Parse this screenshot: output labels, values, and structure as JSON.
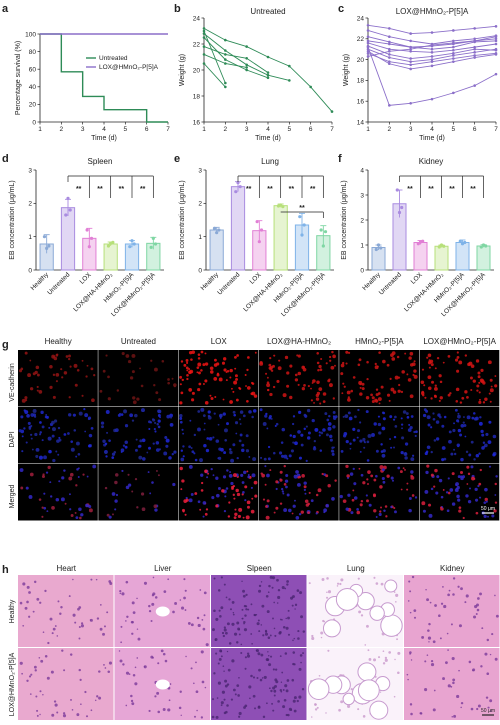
{
  "panels": {
    "a": {
      "letter": "a"
    },
    "b": {
      "letter": "b"
    },
    "c": {
      "letter": "c"
    },
    "d": {
      "letter": "d"
    },
    "e": {
      "letter": "e"
    },
    "f": {
      "letter": "f"
    },
    "g": {
      "letter": "g"
    },
    "h": {
      "letter": "h"
    }
  },
  "chart_data": [
    {
      "id": "a",
      "type": "line",
      "xlabel": "Time (d)",
      "ylabel": "Percentage survival (%)",
      "xlim": [
        1,
        7
      ],
      "ylim": [
        0,
        100
      ],
      "xticks": [
        1,
        2,
        3,
        4,
        5,
        6,
        7
      ],
      "yticks": [
        0,
        20,
        40,
        60,
        80,
        100
      ],
      "legend": "top-right",
      "series": [
        {
          "name": "Untreated",
          "color": "#2e8b57",
          "step": true,
          "x": [
            1,
            2,
            2,
            3,
            3,
            4,
            4,
            6,
            6,
            7
          ],
          "y": [
            100,
            100,
            57,
            57,
            29,
            29,
            14,
            14,
            0,
            0
          ]
        },
        {
          "name": "LOX@HMnO₂-P[5]A",
          "color": "#8b6fc9",
          "step": true,
          "x": [
            1,
            7
          ],
          "y": [
            100,
            100
          ]
        }
      ]
    },
    {
      "id": "b",
      "type": "line",
      "title": "Untreated",
      "xlabel": "Time (d)",
      "ylabel": "Weight (g)",
      "xlim": [
        1,
        7
      ],
      "ylim": [
        16,
        24
      ],
      "xticks": [
        1,
        2,
        3,
        4,
        5,
        6,
        7
      ],
      "yticks": [
        16,
        18,
        20,
        22,
        24
      ],
      "color": "#2e8b57",
      "series": [
        {
          "x": [
            1,
            2,
            3,
            4,
            5,
            6,
            7
          ],
          "y": [
            23.2,
            22.3,
            21.8,
            21.0,
            20.3,
            18.7,
            16.8
          ]
        },
        {
          "x": [
            1,
            2,
            3,
            4,
            5
          ],
          "y": [
            22.8,
            21.5,
            20.4,
            19.6,
            19.2
          ]
        },
        {
          "x": [
            1,
            2,
            3,
            4
          ],
          "y": [
            22.5,
            20.8,
            20.0,
            19.4
          ]
        },
        {
          "x": [
            1,
            2,
            3,
            4
          ],
          "y": [
            21.8,
            21.2,
            20.9,
            19.8
          ]
        },
        {
          "x": [
            1,
            2,
            3
          ],
          "y": [
            21.2,
            20.5,
            20.2
          ]
        },
        {
          "x": [
            1,
            2
          ],
          "y": [
            23.0,
            19.0
          ]
        },
        {
          "x": [
            1,
            2
          ],
          "y": [
            20.5,
            18.7
          ]
        }
      ]
    },
    {
      "id": "c",
      "type": "line",
      "title": "LOX@HMnO₂-P[5]A",
      "xlabel": "Time (d)",
      "ylabel": "Weight (g)",
      "xlim": [
        1,
        7
      ],
      "ylim": [
        14,
        24
      ],
      "xticks": [
        1,
        2,
        3,
        4,
        5,
        6,
        7
      ],
      "yticks": [
        14,
        16,
        18,
        20,
        22,
        24
      ],
      "color": "#8b6fc9",
      "series": [
        {
          "x": [
            1,
            2,
            3,
            4,
            5,
            6,
            7
          ],
          "y": [
            23.3,
            23.0,
            22.5,
            22.6,
            22.8,
            23.0,
            23.2
          ]
        },
        {
          "x": [
            1,
            2,
            3,
            4,
            5,
            6,
            7
          ],
          "y": [
            22.8,
            22.2,
            21.8,
            21.5,
            21.8,
            22.0,
            22.3
          ]
        },
        {
          "x": [
            1,
            2,
            3,
            4,
            5,
            6,
            7
          ],
          "y": [
            22.2,
            21.7,
            21.2,
            21.0,
            21.2,
            21.7,
            21.8
          ]
        },
        {
          "x": [
            1,
            2,
            3,
            4,
            5,
            6,
            7
          ],
          "y": [
            21.6,
            21.0,
            20.8,
            20.7,
            20.9,
            21.2,
            21.5
          ]
        },
        {
          "x": [
            1,
            2,
            3,
            4,
            5,
            6,
            7
          ],
          "y": [
            21.3,
            20.5,
            20.1,
            20.3,
            20.6,
            21.0,
            20.9
          ]
        },
        {
          "x": [
            1,
            2,
            3,
            4,
            5,
            6,
            7
          ],
          "y": [
            21.0,
            20.2,
            19.8,
            20.0,
            20.4,
            20.7,
            21.0
          ]
        },
        {
          "x": [
            1,
            2,
            3,
            4,
            5,
            6,
            7
          ],
          "y": [
            20.6,
            19.8,
            19.5,
            19.8,
            20.1,
            20.4,
            20.6
          ]
        },
        {
          "x": [
            1,
            2,
            3,
            4,
            5,
            6,
            7
          ],
          "y": [
            20.3,
            20.8,
            21.0,
            21.4,
            21.6,
            21.8,
            22.0
          ]
        },
        {
          "x": [
            1,
            2,
            3,
            4,
            5,
            6,
            7
          ],
          "y": [
            21.8,
            21.5,
            21.2,
            21.3,
            21.5,
            21.8,
            22.2
          ]
        },
        {
          "x": [
            1,
            2,
            3,
            4,
            5,
            6,
            7
          ],
          "y": [
            20.8,
            19.6,
            19.1,
            19.4,
            19.8,
            20.2,
            20.5
          ]
        },
        {
          "x": [
            1,
            2,
            3,
            4,
            5,
            6,
            7
          ],
          "y": [
            21.2,
            15.6,
            15.8,
            16.2,
            16.8,
            17.5,
            18.6
          ]
        }
      ]
    },
    {
      "id": "d",
      "type": "bar",
      "title": "Spleen",
      "ylabel": "EB concentration (μg/mL)",
      "ylim": [
        0,
        3
      ],
      "yticks": [
        0,
        1.0,
        2.0,
        3.0
      ],
      "categories": [
        "Healthy",
        "Untreated",
        "LOX",
        "LOX@HA-HMnO₂",
        "HMnO₂-P[5]A",
        "LOX@HMnO₂-P[5]A"
      ],
      "values": [
        0.78,
        1.87,
        0.95,
        0.78,
        0.78,
        0.8
      ],
      "errors": [
        0.28,
        0.25,
        0.3,
        0.06,
        0.1,
        0.18
      ],
      "points": [
        [
          1.0,
          0.65,
          0.72
        ],
        [
          1.65,
          2.15,
          1.8
        ],
        [
          1.2,
          0.7,
          0.95
        ],
        [
          0.72,
          0.8,
          0.83
        ],
        [
          0.7,
          0.88,
          0.78
        ],
        [
          0.68,
          0.95,
          0.78
        ]
      ],
      "significance": [
        "**",
        "**",
        "**",
        "**"
      ]
    },
    {
      "id": "e",
      "type": "bar",
      "title": "Lung",
      "ylabel": "EB concentration (μg/mL)",
      "ylim": [
        0,
        3
      ],
      "yticks": [
        0,
        1.0,
        2.0,
        3.0
      ],
      "categories": [
        "Healthy",
        "Untreated",
        "LOX",
        "LOX@HA-HMnO₂",
        "HMnO₂-P[5]A",
        "LOX@HMnO₂-P[5]A"
      ],
      "values": [
        1.2,
        2.5,
        1.18,
        1.93,
        1.35,
        1.03
      ],
      "errors": [
        0.08,
        0.15,
        0.3,
        0.05,
        0.35,
        0.3
      ],
      "points": [
        [
          1.25,
          1.12,
          1.2
        ],
        [
          2.35,
          2.62,
          2.5
        ],
        [
          1.45,
          0.85,
          1.2
        ],
        [
          1.92,
          1.95,
          1.9
        ],
        [
          1.6,
          1.05,
          1.35
        ],
        [
          1.2,
          0.72,
          1.15
        ]
      ],
      "significance": [
        "**",
        "**",
        "**",
        "**",
        "**"
      ]
    },
    {
      "id": "f",
      "type": "bar",
      "title": "Kidney",
      "ylabel": "EB concentration (μg/mL)",
      "ylim": [
        0,
        4
      ],
      "yticks": [
        0,
        1,
        2,
        3,
        4
      ],
      "categories": [
        "Healthy",
        "Untreated",
        "LOX",
        "LOX@HA-HMnO₂",
        "HMnO₂-P[5]A",
        "LOX@HMnO₂-P[5]A"
      ],
      "values": [
        0.9,
        2.65,
        1.1,
        0.95,
        1.1,
        0.96
      ],
      "errors": [
        0.1,
        0.55,
        0.08,
        0.05,
        0.1,
        0.05
      ],
      "points": [
        [
          0.82,
          1.0,
          0.88
        ],
        [
          3.2,
          2.3,
          2.5
        ],
        [
          1.05,
          1.12,
          1.15
        ],
        [
          0.92,
          1.0,
          0.95
        ],
        [
          1.15,
          1.05,
          1.1
        ],
        [
          0.92,
          1.0,
          0.96
        ]
      ],
      "significance": [
        "**",
        "**",
        "**",
        "**"
      ]
    }
  ],
  "bar_colors": [
    "#8aa9d6",
    "#a98be0",
    "#e17fd5",
    "#b7e07a",
    "#7fb3e8",
    "#7fd6a3"
  ],
  "micro": {
    "columns": [
      "Healthy",
      "Untreated",
      "LOX",
      "LOX@HA-HMnO₂",
      "HMnO₂-P[5]A",
      "LOX@HMnO₂-P[5]A"
    ],
    "rows": [
      "VE-cadherin",
      "DAPI",
      "Merged"
    ],
    "scale_bar": "50 μm",
    "intensity": [
      0.35,
      0.12,
      0.9,
      0.7,
      0.7,
      0.75
    ]
  },
  "histo": {
    "columns": [
      "Heart",
      "Liver",
      "Slpeen",
      "Lung",
      "Kidney"
    ],
    "rows": [
      "Healthy",
      "LOX@HMnO₂-P[5]A"
    ],
    "scale_bar": "50 μm"
  }
}
